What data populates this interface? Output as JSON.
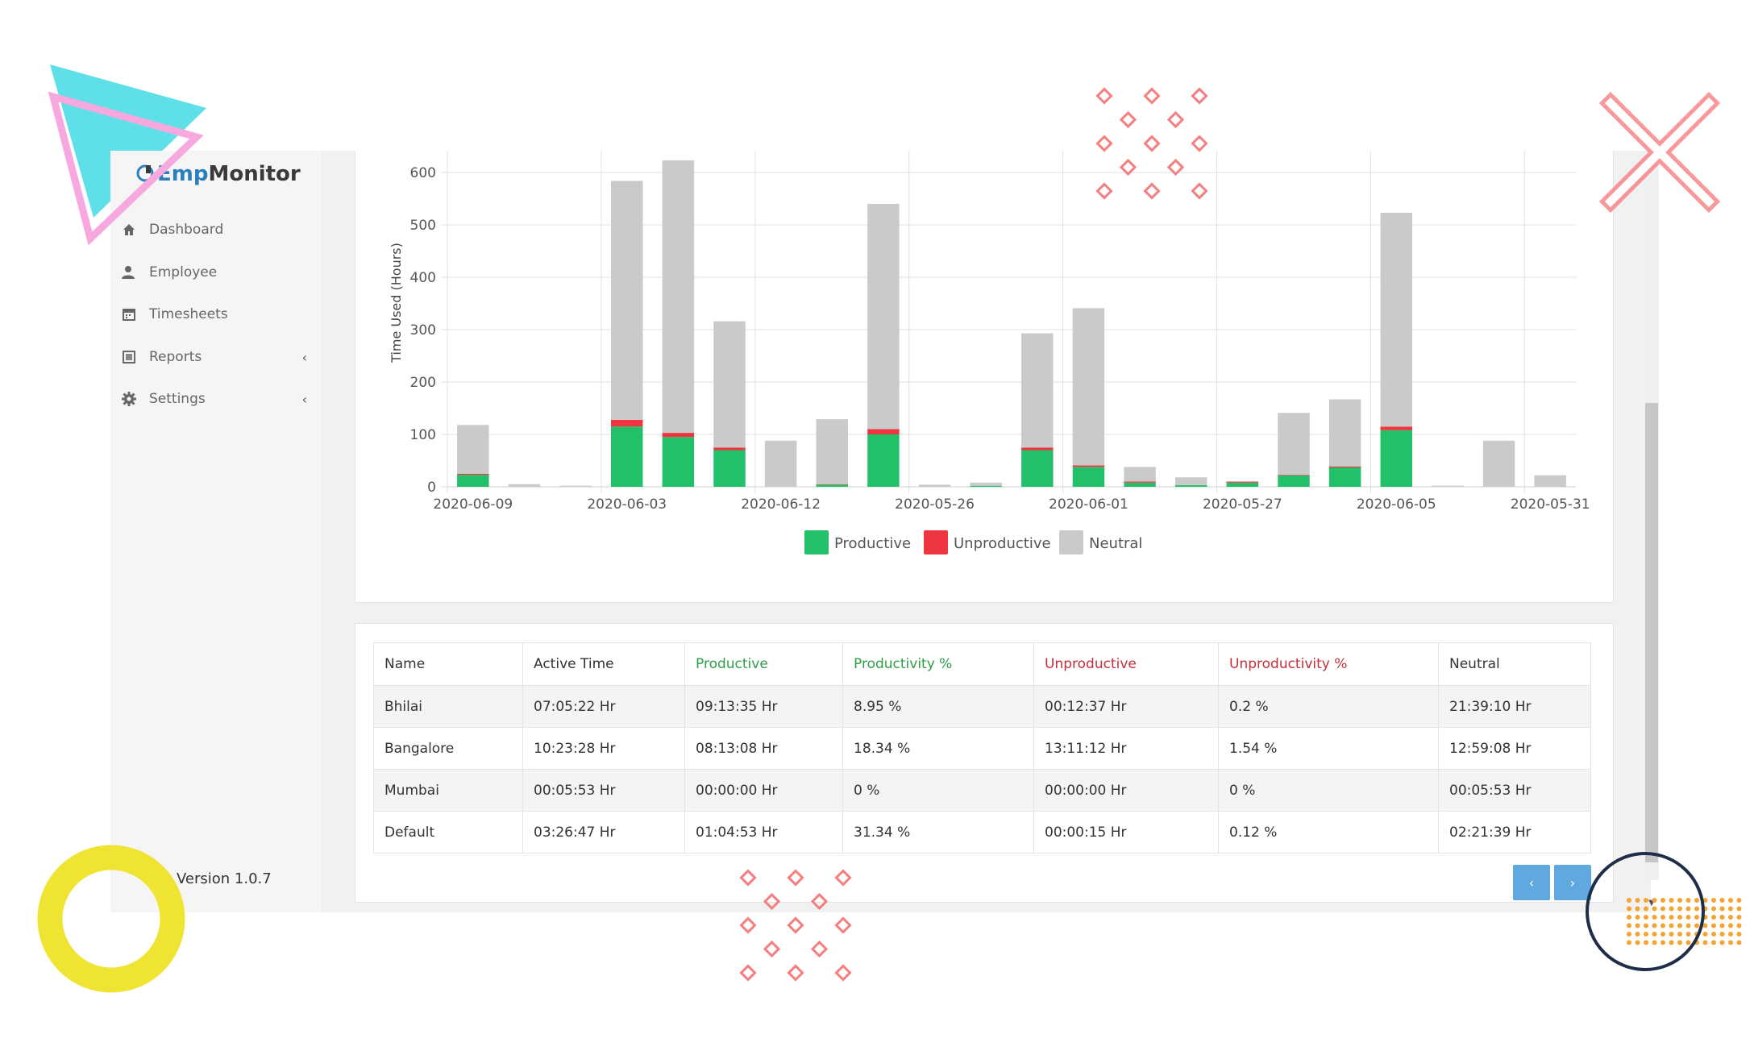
{
  "brand": {
    "part1": "Emp",
    "part2": "Monitor"
  },
  "sidebar": {
    "items": [
      {
        "label": "Dashboard",
        "icon": "home-icon"
      },
      {
        "label": "Employee",
        "icon": "user-icon"
      },
      {
        "label": "Timesheets",
        "icon": "calendar-icon"
      },
      {
        "label": "Reports",
        "icon": "report-icon",
        "chevron": "‹"
      },
      {
        "label": "Settings",
        "icon": "gear-icon",
        "chevron": "‹"
      }
    ],
    "version": "Version 1.0.7"
  },
  "colors": {
    "productive": "#22c068",
    "unproductive": "#ef3640",
    "neutral": "#cacaca",
    "accent": "#5fa9e0",
    "productive_header": "#2e9e48",
    "unproductive_header": "#c4303a"
  },
  "chart_data": {
    "type": "bar",
    "stacked": true,
    "ylabel": "Time Used (Hours)",
    "ylim": [
      0,
      600
    ],
    "yticks": [
      0,
      100,
      200,
      300,
      400,
      500,
      600
    ],
    "grid": true,
    "legend_position": "bottom",
    "x_tick_labels": [
      "2020-06-09",
      "2020-06-03",
      "2020-06-12",
      "2020-05-26",
      "2020-06-01",
      "2020-05-27",
      "2020-06-05",
      "2020-05-31"
    ],
    "series": [
      {
        "name": "Productive",
        "values": [
          23,
          0,
          0,
          115,
          95,
          70,
          0,
          4,
          100,
          0,
          2,
          70,
          38,
          8,
          3,
          8,
          22,
          37,
          108,
          0,
          0,
          0
        ]
      },
      {
        "name": "Unproductive",
        "values": [
          2,
          0,
          0,
          13,
          8,
          5,
          0,
          1,
          10,
          0,
          0,
          5,
          3,
          2,
          0,
          2,
          1,
          2,
          7,
          0,
          0,
          0
        ]
      },
      {
        "name": "Neutral",
        "values": [
          93,
          5,
          2,
          456,
          520,
          241,
          88,
          124,
          430,
          4,
          6,
          218,
          300,
          28,
          15,
          0,
          118,
          128,
          408,
          2,
          88,
          22
        ]
      }
    ]
  },
  "table": {
    "headers": [
      "Name",
      "Active Time",
      "Productive",
      "Productivity %",
      "Unproductive",
      "Unproductivity %",
      "Neutral"
    ],
    "rows": [
      [
        "Bhilai",
        "07:05:22 Hr",
        "09:13:35 Hr",
        "8.95 %",
        "00:12:37 Hr",
        "0.2 %",
        "21:39:10 Hr"
      ],
      [
        "Bangalore",
        "10:23:28 Hr",
        "08:13:08 Hr",
        "18.34 %",
        "13:11:12 Hr",
        "1.54 %",
        "12:59:08 Hr"
      ],
      [
        "Mumbai",
        "00:05:53 Hr",
        "00:00:00 Hr",
        "0 %",
        "00:00:00 Hr",
        "0 %",
        "00:05:53 Hr"
      ],
      [
        "Default",
        "03:26:47 Hr",
        "01:04:53 Hr",
        "31.34 %",
        "00:00:15 Hr",
        "0.12 %",
        "02:21:39 Hr"
      ]
    ]
  },
  "pagination": {
    "prev": "‹",
    "next": "›"
  }
}
